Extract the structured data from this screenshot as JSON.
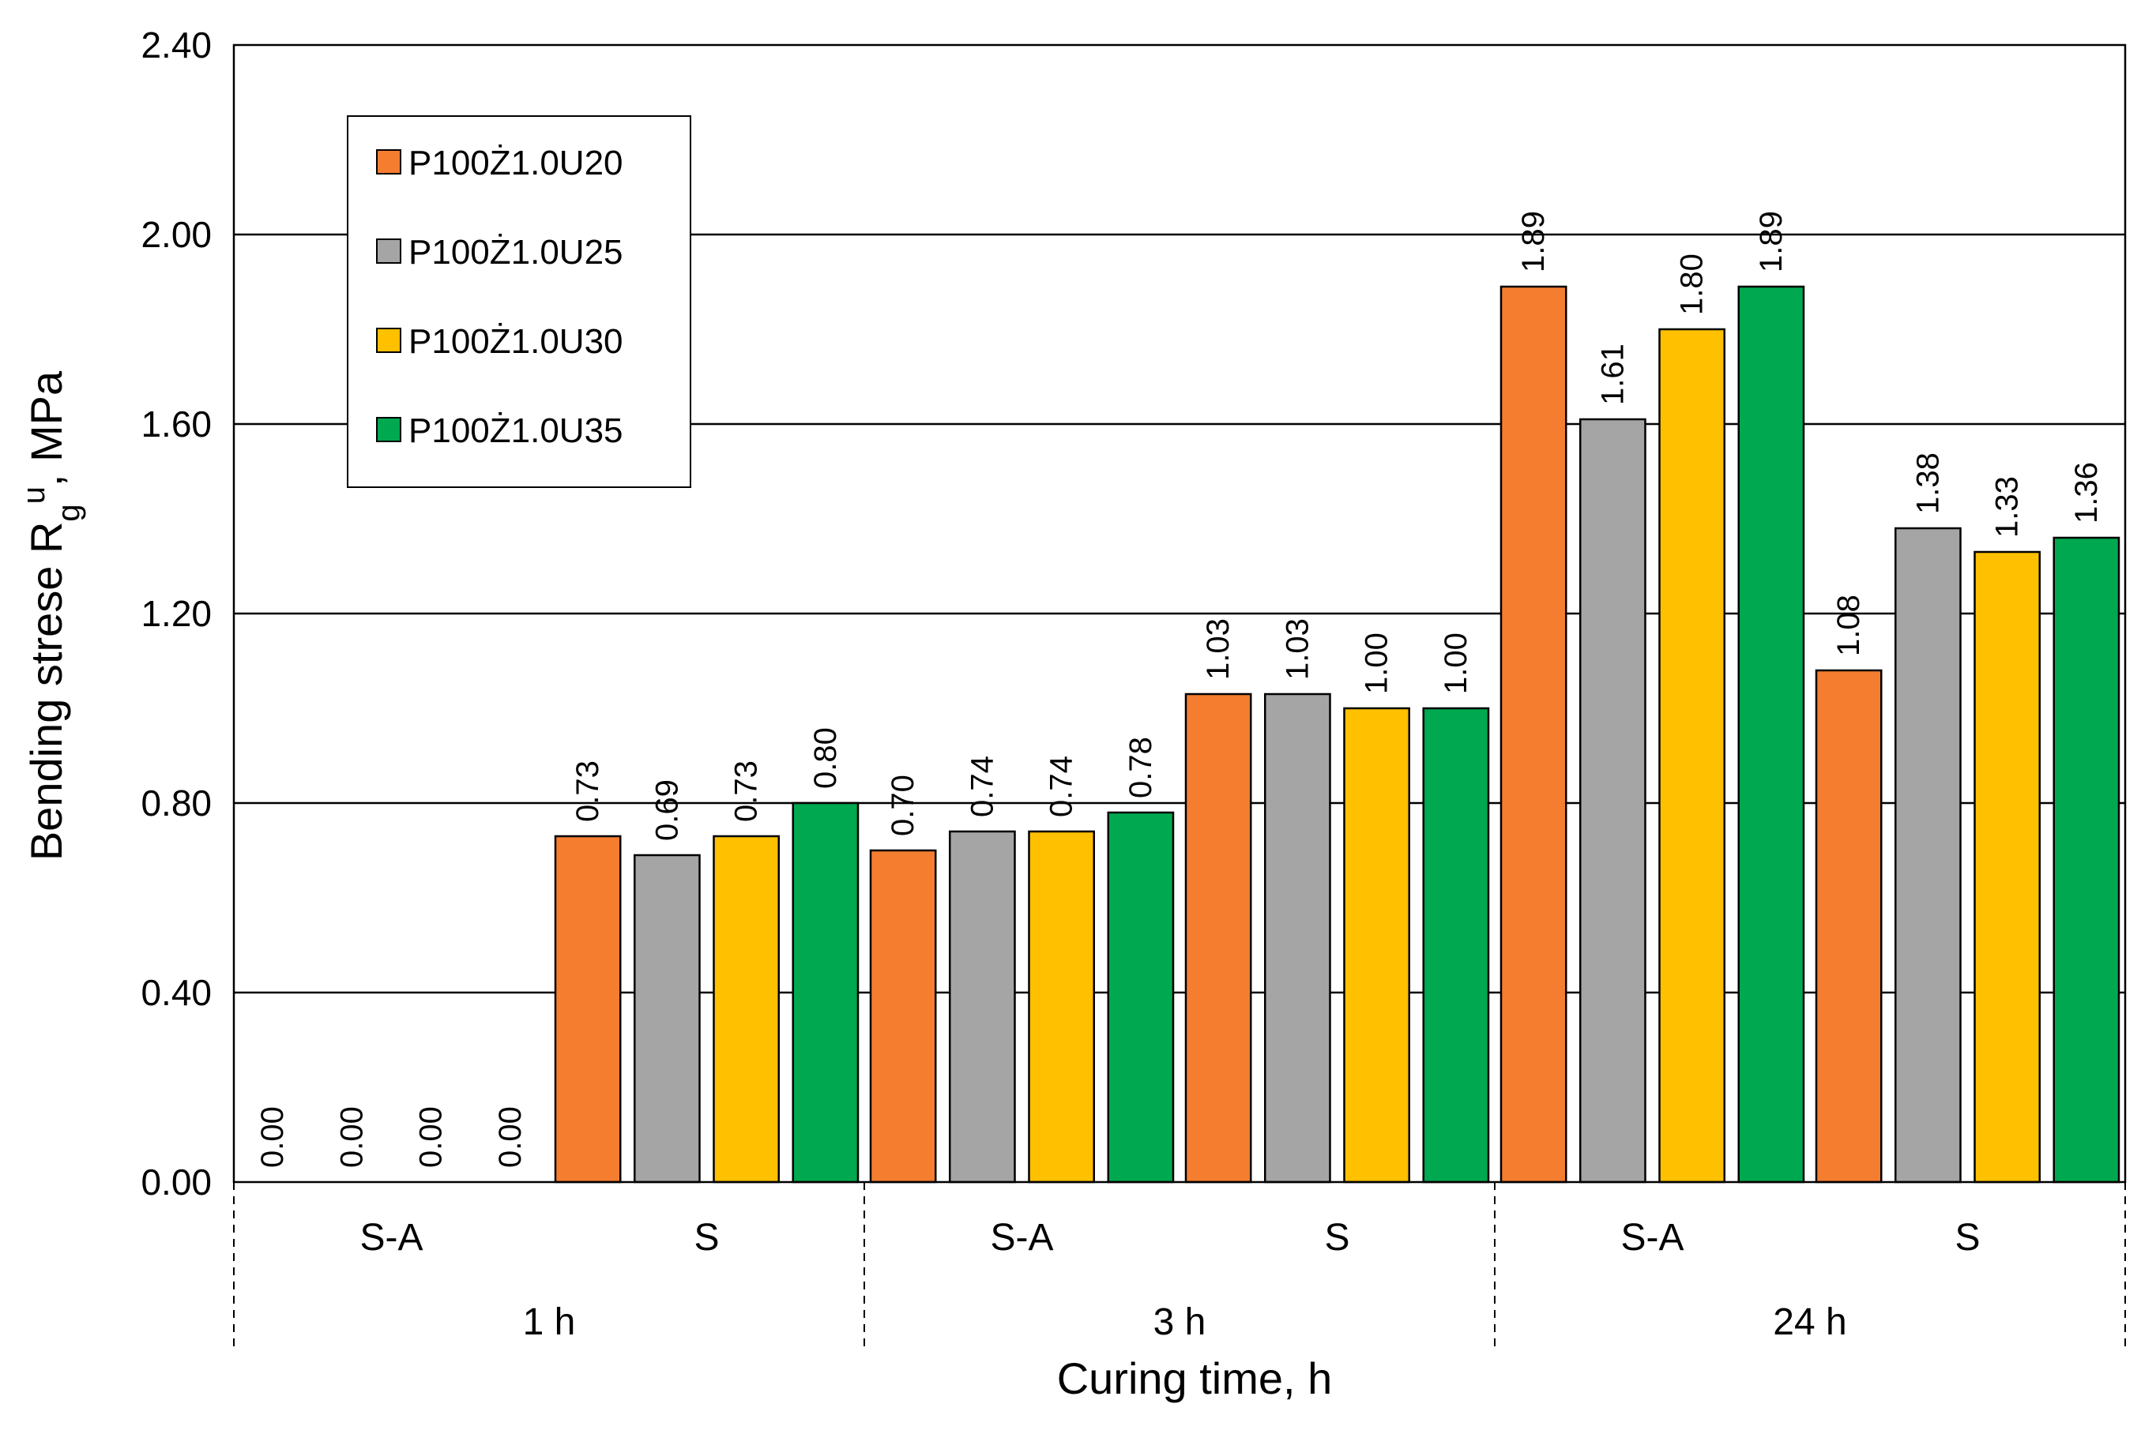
{
  "chart_data": {
    "type": "bar",
    "title": "",
    "xlabel": "Curing time, h",
    "ylabel": "Bending strese R",
    "ylabel_sub": "g",
    "ylabel_sup": "u",
    "ylabel_suffix": ", MPa",
    "ylim": [
      0,
      2.4
    ],
    "yticks": [
      "0.00",
      "0.40",
      "0.80",
      "1.20",
      "1.60",
      "2.00",
      "2.40"
    ],
    "grid": true,
    "legend_position": "top-left",
    "groups": [
      {
        "time": "1 h",
        "conditions": [
          "S-A",
          "S"
        ]
      },
      {
        "time": "3 h",
        "conditions": [
          "S-A",
          "S"
        ]
      },
      {
        "time": "24 h",
        "conditions": [
          "S-A",
          "S"
        ]
      }
    ],
    "categories": [
      "1 h S-A",
      "1 h S",
      "3 h S-A",
      "3 h S",
      "24 h S-A",
      "24 h S"
    ],
    "series": [
      {
        "name": "P100Ż1.0U20",
        "color": "#F47D30",
        "values": [
          0.0,
          0.73,
          0.7,
          1.03,
          1.89,
          1.08
        ],
        "labels": [
          "0.00",
          "0.73",
          "0.70",
          "1.03",
          "1.89",
          "1.08"
        ]
      },
      {
        "name": "P100Ż1.0U25",
        "color": "#A5A5A5",
        "values": [
          0.0,
          0.69,
          0.74,
          1.03,
          1.61,
          1.38
        ],
        "labels": [
          "0.00",
          "0.69",
          "0.74",
          "1.03",
          "1.61",
          "1.38"
        ]
      },
      {
        "name": "P100Ż1.0U30",
        "color": "#FFC000",
        "values": [
          0.0,
          0.73,
          0.74,
          1.0,
          1.8,
          1.33
        ],
        "labels": [
          "0.00",
          "0.73",
          "0.74",
          "1.00",
          "1.80",
          "1.33"
        ]
      },
      {
        "name": "P100Ż1.0U35",
        "color": "#00A84F",
        "values": [
          0.0,
          0.8,
          0.78,
          1.0,
          1.89,
          1.36
        ],
        "labels": [
          "0.00",
          "0.80",
          "0.78",
          "1.00",
          "1.89",
          "1.36"
        ]
      }
    ]
  }
}
